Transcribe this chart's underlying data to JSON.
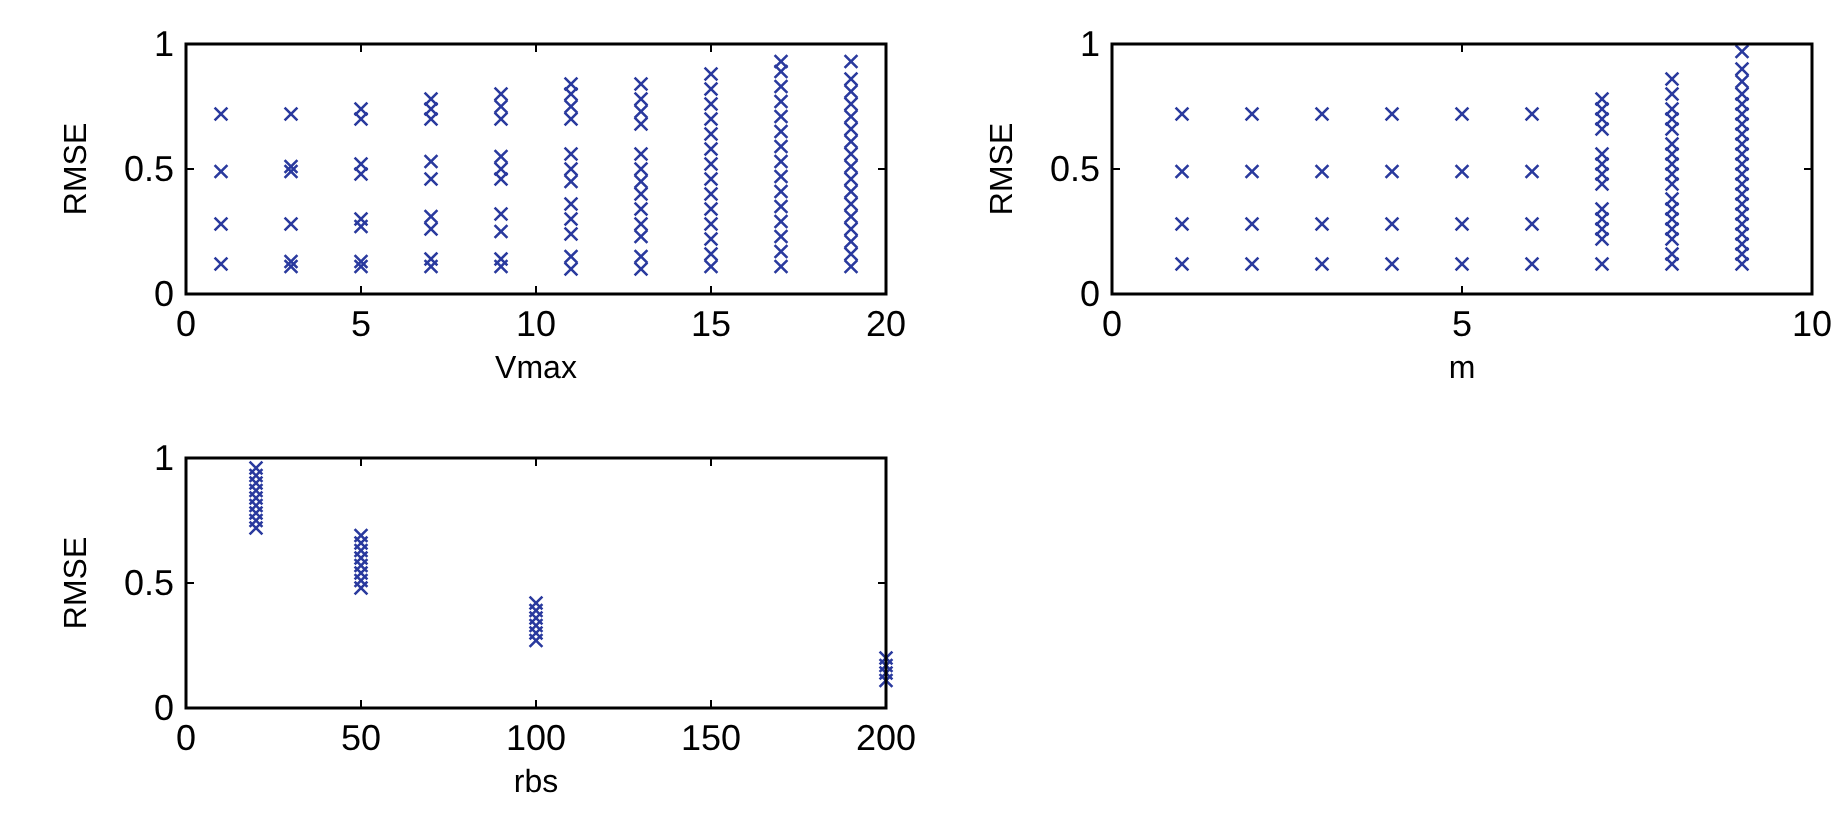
{
  "chart_data": [
    {
      "type": "scatter",
      "xlabel": "Vmax",
      "ylabel": "RMSE",
      "xlim": [
        0,
        20
      ],
      "ylim": [
        0,
        1
      ],
      "xticks": [
        0,
        5,
        10,
        15,
        20
      ],
      "yticks": [
        0,
        0.5,
        1
      ],
      "marker": "cross",
      "color": "#2a3a9e",
      "x": [
        1,
        1,
        1,
        1,
        3,
        3,
        3,
        3,
        3,
        3,
        5,
        5,
        5,
        5,
        5,
        5,
        5,
        5,
        7,
        7,
        7,
        7,
        7,
        7,
        7,
        7,
        7,
        9,
        9,
        9,
        9,
        9,
        9,
        9,
        9,
        9,
        9,
        11,
        11,
        11,
        11,
        11,
        11,
        11,
        11,
        11,
        11,
        11,
        11,
        13,
        13,
        13,
        13,
        13,
        13,
        13,
        13,
        13,
        13,
        13,
        13,
        13,
        15,
        15,
        15,
        15,
        15,
        15,
        15,
        15,
        15,
        15,
        15,
        15,
        15,
        15,
        17,
        17,
        17,
        17,
        17,
        17,
        17,
        17,
        17,
        17,
        17,
        17,
        17,
        17,
        17,
        19,
        19,
        19,
        19,
        19,
        19,
        19,
        19,
        19,
        19,
        19,
        19,
        19,
        19,
        19,
        19,
        19
      ],
      "values": [
        0.12,
        0.28,
        0.49,
        0.72,
        0.11,
        0.13,
        0.28,
        0.49,
        0.51,
        0.72,
        0.11,
        0.13,
        0.27,
        0.3,
        0.48,
        0.52,
        0.7,
        0.74,
        0.11,
        0.14,
        0.26,
        0.31,
        0.46,
        0.53,
        0.7,
        0.74,
        0.78,
        0.11,
        0.14,
        0.25,
        0.32,
        0.46,
        0.5,
        0.55,
        0.7,
        0.75,
        0.8,
        0.1,
        0.15,
        0.24,
        0.3,
        0.36,
        0.45,
        0.5,
        0.56,
        0.7,
        0.75,
        0.8,
        0.84,
        0.1,
        0.15,
        0.23,
        0.28,
        0.34,
        0.4,
        0.45,
        0.5,
        0.56,
        0.68,
        0.73,
        0.78,
        0.84,
        0.11,
        0.16,
        0.22,
        0.28,
        0.34,
        0.4,
        0.46,
        0.52,
        0.58,
        0.64,
        0.7,
        0.76,
        0.82,
        0.88,
        0.11,
        0.17,
        0.23,
        0.29,
        0.35,
        0.41,
        0.47,
        0.53,
        0.59,
        0.65,
        0.71,
        0.77,
        0.83,
        0.89,
        0.93,
        0.11,
        0.16,
        0.21,
        0.26,
        0.31,
        0.36,
        0.41,
        0.46,
        0.51,
        0.56,
        0.61,
        0.66,
        0.71,
        0.76,
        0.81,
        0.86,
        0.93
      ]
    },
    {
      "type": "scatter",
      "xlabel": "m",
      "ylabel": "RMSE",
      "xlim": [
        0,
        10
      ],
      "ylim": [
        0,
        1
      ],
      "xticks": [
        0,
        5,
        10
      ],
      "yticks": [
        0,
        0.5,
        1
      ],
      "marker": "cross",
      "color": "#2a3a9e",
      "x": [
        1,
        1,
        1,
        1,
        2,
        2,
        2,
        2,
        3,
        3,
        3,
        3,
        4,
        4,
        4,
        4,
        5,
        5,
        5,
        5,
        6,
        6,
        6,
        6,
        7,
        7,
        7,
        7,
        7,
        7,
        7,
        7,
        7,
        7,
        7,
        7,
        7,
        8,
        8,
        8,
        8,
        8,
        8,
        8,
        8,
        8,
        8,
        8,
        8,
        8,
        8,
        8,
        8,
        8,
        9,
        9,
        9,
        9,
        9,
        9,
        9,
        9,
        9,
        9,
        9,
        9,
        9,
        9,
        9,
        9,
        9,
        9,
        9,
        9,
        9
      ],
      "values": [
        0.12,
        0.28,
        0.49,
        0.72,
        0.12,
        0.28,
        0.49,
        0.72,
        0.12,
        0.28,
        0.49,
        0.72,
        0.12,
        0.28,
        0.49,
        0.72,
        0.12,
        0.28,
        0.49,
        0.72,
        0.12,
        0.28,
        0.49,
        0.72,
        0.12,
        0.22,
        0.26,
        0.3,
        0.34,
        0.44,
        0.48,
        0.52,
        0.56,
        0.66,
        0.7,
        0.74,
        0.78,
        0.12,
        0.16,
        0.22,
        0.26,
        0.3,
        0.34,
        0.38,
        0.44,
        0.48,
        0.52,
        0.56,
        0.6,
        0.66,
        0.7,
        0.74,
        0.8,
        0.86,
        0.12,
        0.16,
        0.2,
        0.24,
        0.28,
        0.32,
        0.36,
        0.4,
        0.44,
        0.48,
        0.52,
        0.56,
        0.6,
        0.64,
        0.68,
        0.72,
        0.76,
        0.8,
        0.85,
        0.9,
        0.97
      ]
    },
    {
      "type": "scatter",
      "xlabel": "rbs",
      "ylabel": "RMSE",
      "xlim": [
        0,
        200
      ],
      "ylim": [
        0,
        1
      ],
      "xticks": [
        0,
        50,
        100,
        150,
        200
      ],
      "yticks": [
        0,
        0.5,
        1
      ],
      "marker": "cross",
      "color": "#2a3a9e",
      "x": [
        20,
        20,
        20,
        20,
        20,
        20,
        20,
        20,
        20,
        50,
        50,
        50,
        50,
        50,
        50,
        50,
        50,
        100,
        100,
        100,
        100,
        100,
        100,
        200,
        200,
        200,
        200
      ],
      "values": [
        0.72,
        0.75,
        0.78,
        0.81,
        0.84,
        0.87,
        0.9,
        0.93,
        0.96,
        0.48,
        0.51,
        0.54,
        0.57,
        0.6,
        0.63,
        0.66,
        0.69,
        0.27,
        0.3,
        0.33,
        0.36,
        0.39,
        0.42,
        0.11,
        0.14,
        0.17,
        0.2
      ]
    }
  ]
}
